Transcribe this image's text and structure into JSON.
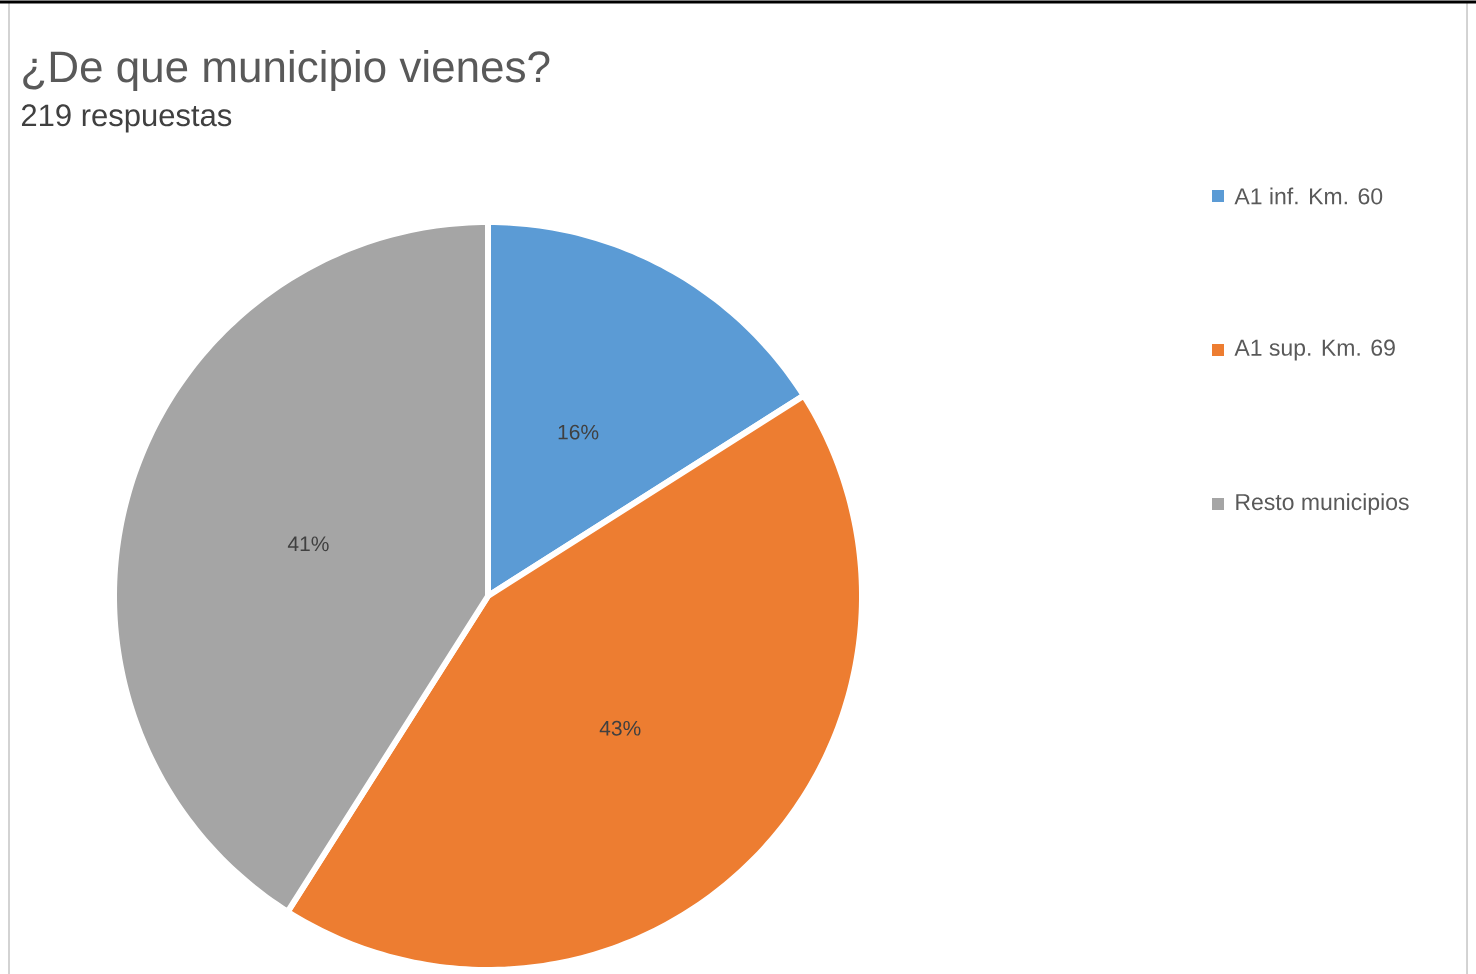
{
  "chart_data": {
    "type": "pie",
    "title": "¿De que municipio vienes?",
    "subtitle": "219 respuestas",
    "categories": [
      "A1 inf. Km. 60",
      "A1 sup. Km. 69",
      "Resto municipios"
    ],
    "values": [
      16,
      43,
      41
    ],
    "colors": [
      "#5b9bd5",
      "#ed7d31",
      "#a5a5a5"
    ],
    "value_labels": [
      "16%",
      "43%",
      "41%"
    ],
    "legend": "right"
  }
}
